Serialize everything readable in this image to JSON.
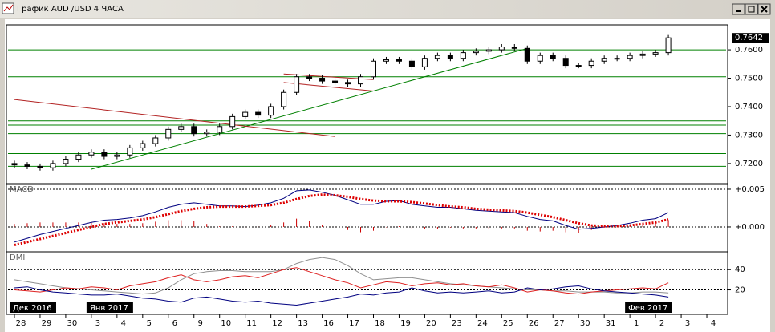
{
  "window": {
    "title": "График AUD /USD  4 ЧАСА"
  },
  "chart_data": [
    {
      "type": "candlestick",
      "categories": [
        "28",
        null,
        "29",
        null,
        "30",
        null,
        "3",
        null,
        "4",
        null,
        "5",
        null,
        "6",
        null,
        "9",
        null,
        "10",
        null,
        "11",
        null,
        "12",
        null,
        "13",
        null,
        "16",
        null,
        "17",
        null,
        "18",
        null,
        "19",
        null,
        "20",
        null,
        "23",
        null,
        "24",
        null,
        "25",
        null,
        "26",
        null,
        "27",
        null,
        "30",
        null,
        "31",
        null,
        "1",
        null,
        "2",
        null,
        "3",
        null,
        "4",
        null
      ],
      "months": [
        "Дек 2016",
        null,
        null,
        null,
        null,
        null,
        "Янв 2017",
        null,
        null,
        null,
        null,
        null,
        null,
        null,
        null,
        null,
        null,
        null,
        null,
        null,
        null,
        null,
        null,
        null,
        null,
        null,
        null,
        null,
        null,
        null,
        null,
        null,
        null,
        null,
        null,
        null,
        null,
        null,
        null,
        null,
        null,
        null,
        null,
        null,
        null,
        null,
        null,
        null,
        "Фев 2017",
        null,
        null,
        null,
        null,
        null,
        null,
        null
      ],
      "open": [
        0.72,
        0.7195,
        0.719,
        0.7185,
        0.72,
        0.7215,
        0.723,
        0.724,
        0.7225,
        0.723,
        0.7255,
        0.727,
        0.729,
        0.732,
        0.733,
        0.7305,
        0.731,
        0.733,
        0.7365,
        0.738,
        0.737,
        0.74,
        0.745,
        0.7505,
        0.75,
        0.749,
        0.7485,
        0.748,
        0.7505,
        0.756,
        0.7565,
        0.756,
        0.754,
        0.757,
        0.758,
        0.757,
        0.759,
        0.7595,
        0.76,
        0.761,
        0.7605,
        0.756,
        0.758,
        0.757,
        0.7545,
        0.7545,
        0.756,
        0.757,
        0.757,
        0.758,
        0.7585,
        0.759,
        null,
        null,
        null,
        null
      ],
      "high": [
        0.721,
        0.7205,
        0.72,
        0.721,
        0.7225,
        0.724,
        0.725,
        0.725,
        0.724,
        0.7265,
        0.728,
        0.73,
        0.733,
        0.734,
        0.734,
        0.732,
        0.734,
        0.7375,
        0.739,
        0.739,
        0.741,
        0.746,
        0.7515,
        0.7515,
        0.751,
        0.75,
        0.7495,
        0.7515,
        0.757,
        0.7575,
        0.7575,
        0.757,
        0.758,
        0.759,
        0.759,
        0.76,
        0.7605,
        0.761,
        0.762,
        0.762,
        0.7615,
        0.759,
        0.759,
        0.758,
        0.7555,
        0.757,
        0.758,
        0.758,
        0.759,
        0.7595,
        0.76,
        0.7652,
        null,
        null,
        null,
        null
      ],
      "low": [
        0.7185,
        0.718,
        0.7175,
        0.7175,
        0.719,
        0.7205,
        0.722,
        0.7215,
        0.7215,
        0.722,
        0.7245,
        0.726,
        0.728,
        0.731,
        0.7295,
        0.7295,
        0.73,
        0.732,
        0.7355,
        0.736,
        0.736,
        0.739,
        0.744,
        0.749,
        0.748,
        0.7475,
        0.747,
        0.747,
        0.7495,
        0.755,
        0.755,
        0.753,
        0.753,
        0.756,
        0.756,
        0.756,
        0.758,
        0.7585,
        0.759,
        0.7595,
        0.755,
        0.755,
        0.756,
        0.7535,
        0.7535,
        0.7535,
        0.755,
        0.756,
        0.756,
        0.757,
        0.7575,
        0.758,
        null,
        null,
        null,
        null
      ],
      "close": [
        0.7195,
        0.719,
        0.7185,
        0.72,
        0.7215,
        0.723,
        0.724,
        0.7225,
        0.723,
        0.7255,
        0.727,
        0.729,
        0.732,
        0.733,
        0.7305,
        0.731,
        0.733,
        0.7365,
        0.738,
        0.737,
        0.74,
        0.745,
        0.7505,
        0.75,
        0.749,
        0.7485,
        0.748,
        0.7505,
        0.756,
        0.7565,
        0.756,
        0.754,
        0.757,
        0.758,
        0.757,
        0.759,
        0.7595,
        0.76,
        0.761,
        0.7605,
        0.756,
        0.758,
        0.757,
        0.7545,
        0.7545,
        0.756,
        0.757,
        0.757,
        0.758,
        0.7585,
        0.759,
        0.7642,
        null,
        null,
        null,
        null
      ],
      "ylim": [
        0.7132,
        0.7682
      ],
      "yticks": [
        {
          "value": 0.72,
          "label": "0.7200"
        },
        {
          "value": 0.73,
          "label": "0.7300"
        },
        {
          "value": 0.74,
          "label": "0.7400"
        },
        {
          "value": 0.75,
          "label": "0.7500"
        },
        {
          "value": 0.76,
          "label": "0.7600"
        }
      ],
      "last": {
        "value": 0.7642,
        "label": "0.7642"
      },
      "levels": [
        0.76,
        0.7505,
        0.7455,
        0.735,
        0.7335,
        0.7305,
        0.7235,
        0.719
      ],
      "level_color": "#008000",
      "trendlines": [
        {
          "color": "#008000",
          "points": [
            [
              6,
              0.718
            ],
            [
              40,
              0.7605
            ]
          ]
        },
        {
          "color": "#b22222",
          "points": [
            [
              0,
              0.7425
            ],
            [
              25,
              0.7295
            ]
          ]
        },
        {
          "color": "#b22222",
          "points": [
            [
              21,
              0.7515
            ],
            [
              28,
              0.7495
            ]
          ]
        },
        {
          "color": "#b22222",
          "points": [
            [
              21,
              0.7485
            ],
            [
              28,
              0.7455
            ]
          ]
        }
      ]
    },
    {
      "type": "line",
      "title": "MACD",
      "ylim": [
        -0.00309,
        0.00553
      ],
      "yticks": [
        {
          "value": 0.005,
          "label": "+0.005"
        },
        {
          "value": 0,
          "label": "+0.000"
        }
      ],
      "grid": true,
      "series": [
        {
          "color": "#cc0000",
          "kind": "bar",
          "values": [
            0.0004,
            0.0005,
            0.0006,
            0.0006,
            0.0006,
            0.0006,
            0.0006,
            0.0005,
            0.0004,
            0.0004,
            0.0005,
            0.0007,
            0.0009,
            0.0009,
            0.0008,
            0.0004,
            0.0001,
            0.0001,
            0,
            0.0001,
            0.0003,
            0.0006,
            0.0011,
            0.0008,
            0.0003,
            0,
            -0.0004,
            -0.0007,
            -0.0005,
            0,
            0.0001,
            -0.0003,
            -0.0003,
            -0.0003,
            -0.0001,
            -0.0002,
            -0.0002,
            -0.0002,
            -0.0002,
            -0.0002,
            -0.0005,
            -0.0006,
            -0.0005,
            -0.0007,
            -0.0008,
            -0.0004,
            -0.0001,
            0.0001,
            0.0003,
            0.0005,
            0.0005,
            0.0009,
            null,
            null,
            null,
            null
          ]
        },
        {
          "color": "#000080",
          "values": [
            -0.002,
            -0.0015,
            -0.001,
            -0.0006,
            -0.0002,
            0.0002,
            0.0006,
            0.0009,
            0.001,
            0.0012,
            0.0015,
            0.002,
            0.0026,
            0.003,
            0.0032,
            0.003,
            0.0028,
            0.0028,
            0.0027,
            0.0029,
            0.0032,
            0.0038,
            0.0048,
            0.0049,
            0.0046,
            0.0042,
            0.0036,
            0.003,
            0.003,
            0.0034,
            0.0035,
            0.003,
            0.0028,
            0.0026,
            0.0026,
            0.0024,
            0.0022,
            0.0021,
            0.002,
            0.0019,
            0.0014,
            0.001,
            0.0008,
            0.0002,
            -0.0003,
            -0.0002,
            0,
            0.0002,
            0.0005,
            0.0009,
            0.0011,
            0.0019,
            null,
            null,
            null,
            null
          ]
        },
        {
          "color": "#dd0000",
          "dash": true,
          "values": [
            -0.0024,
            -0.002,
            -0.0016,
            -0.0012,
            -0.0008,
            -0.0004,
            0,
            0.0004,
            0.0006,
            0.0008,
            0.001,
            0.0013,
            0.0017,
            0.0021,
            0.0024,
            0.0026,
            0.0027,
            0.0027,
            0.0027,
            0.0028,
            0.0029,
            0.0032,
            0.0037,
            0.0041,
            0.0043,
            0.0042,
            0.004,
            0.0037,
            0.0035,
            0.0034,
            0.0034,
            0.0033,
            0.0031,
            0.0029,
            0.0027,
            0.0026,
            0.0024,
            0.0023,
            0.0022,
            0.0021,
            0.0019,
            0.0016,
            0.0013,
            0.0009,
            0.0005,
            0.0002,
            0.0001,
            0.0001,
            0.0002,
            0.0004,
            0.0006,
            0.001,
            null,
            null,
            null,
            null
          ]
        }
      ]
    },
    {
      "type": "line",
      "title": "DMI",
      "ylim": [
        -2.5,
        56
      ],
      "yticks": [
        20,
        40
      ],
      "grid": true,
      "series": [
        {
          "color": "#909090",
          "values": [
            30,
            28,
            26,
            24,
            22,
            21,
            20,
            19,
            18,
            17,
            16,
            17,
            22,
            30,
            36,
            38,
            39,
            39,
            38,
            38,
            38,
            40,
            46,
            50,
            52,
            50,
            44,
            36,
            30,
            31,
            32,
            32,
            30,
            28,
            26,
            25,
            24,
            23,
            22,
            21,
            20,
            20,
            19,
            19,
            18,
            18,
            18,
            17,
            17,
            18,
            18,
            17,
            null,
            null,
            null,
            null
          ]
        },
        {
          "color": "#dd2020",
          "values": [
            20,
            19,
            18,
            20,
            22,
            21,
            23,
            22,
            20,
            24,
            26,
            28,
            32,
            35,
            30,
            28,
            30,
            33,
            34,
            32,
            36,
            40,
            42,
            38,
            34,
            30,
            27,
            22,
            25,
            28,
            27,
            24,
            26,
            27,
            25,
            26,
            24,
            23,
            25,
            22,
            18,
            20,
            19,
            17,
            16,
            18,
            19,
            20,
            21,
            22,
            21,
            27,
            null,
            null,
            null,
            null
          ]
        },
        {
          "color": "#000080",
          "values": [
            22,
            23,
            20,
            18,
            17,
            16,
            15,
            15,
            16,
            14,
            12,
            11,
            9,
            8,
            12,
            13,
            11,
            9,
            8,
            9,
            7,
            6,
            5,
            7,
            9,
            11,
            13,
            16,
            15,
            17,
            18,
            22,
            19,
            17,
            18,
            17,
            18,
            19,
            17,
            18,
            22,
            20,
            21,
            23,
            24,
            21,
            19,
            18,
            17,
            16,
            15,
            13,
            null,
            null,
            null,
            null
          ]
        }
      ]
    }
  ]
}
